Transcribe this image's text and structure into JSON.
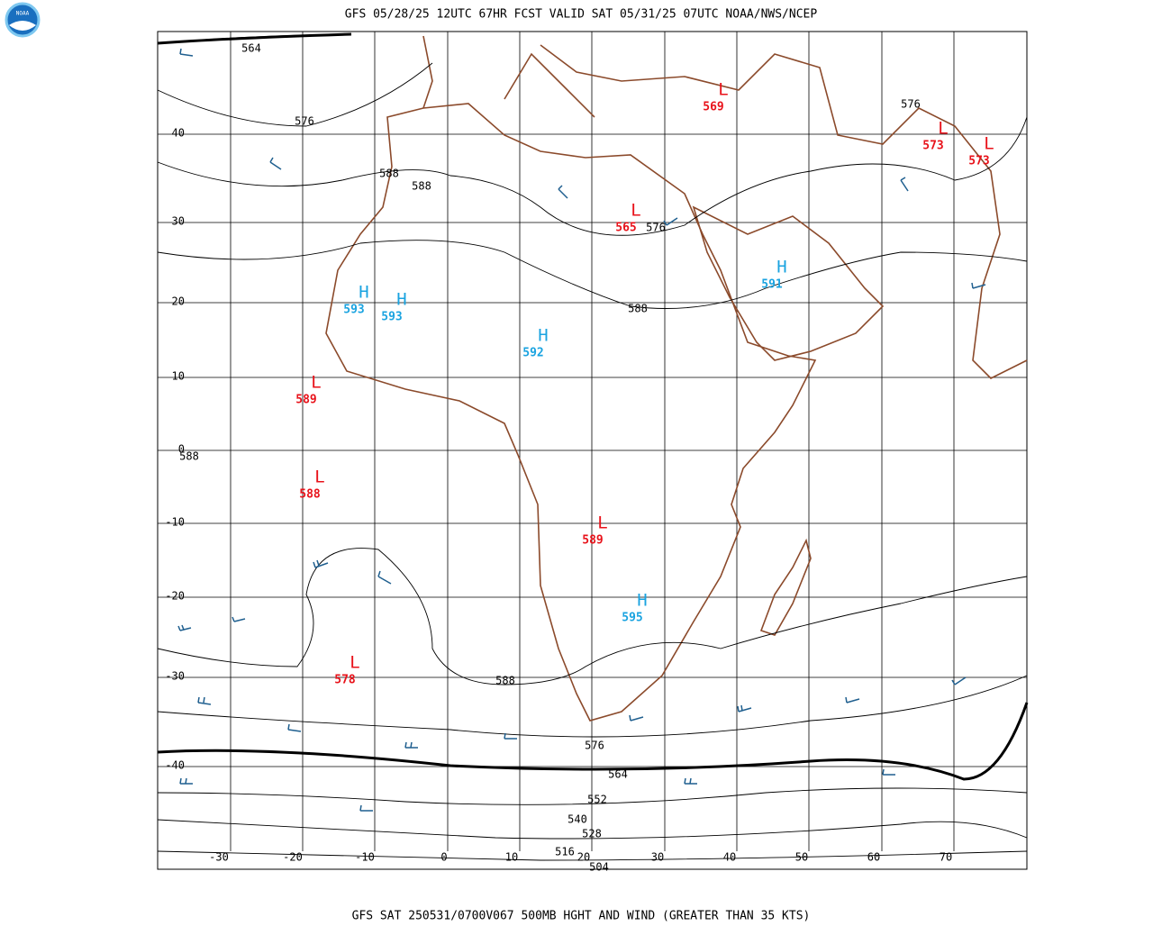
{
  "header": {
    "title": "GFS 05/28/25 12UTC 67HR FCST VALID SAT 05/31/25 07UTC NOAA/NWS/NCEP",
    "logo": "NOAA"
  },
  "footer": "GFS SAT 250531/0700V067 500MB HGHT AND WIND (GREATER THAN 35 KTS)",
  "lat_labels": [
    "40",
    "30",
    "20",
    "10",
    "0",
    "-10",
    "-20",
    "-30",
    "-40"
  ],
  "lon_labels": [
    "-30",
    "-20",
    "-10",
    "0",
    "10",
    "20",
    "30",
    "40",
    "50",
    "60",
    "70"
  ],
  "centers": [
    {
      "kind": "L",
      "value": "569"
    },
    {
      "kind": "L",
      "value": "573"
    },
    {
      "kind": "L",
      "value": "573"
    },
    {
      "kind": "L",
      "value": "565"
    },
    {
      "kind": "H",
      "value": "591"
    },
    {
      "kind": "H",
      "value": "593"
    },
    {
      "kind": "H",
      "value": "593"
    },
    {
      "kind": "H",
      "value": "592"
    },
    {
      "kind": "L",
      "value": "589"
    },
    {
      "kind": "L",
      "value": "588"
    },
    {
      "kind": "L",
      "value": "589"
    },
    {
      "kind": "H",
      "value": "595"
    },
    {
      "kind": "L",
      "value": "578"
    }
  ],
  "contour_labels": [
    "564",
    "576",
    "588",
    "588",
    "576",
    "588",
    "576",
    "588",
    "588",
    "576",
    "564",
    "552",
    "540",
    "528",
    "516",
    "504"
  ]
}
